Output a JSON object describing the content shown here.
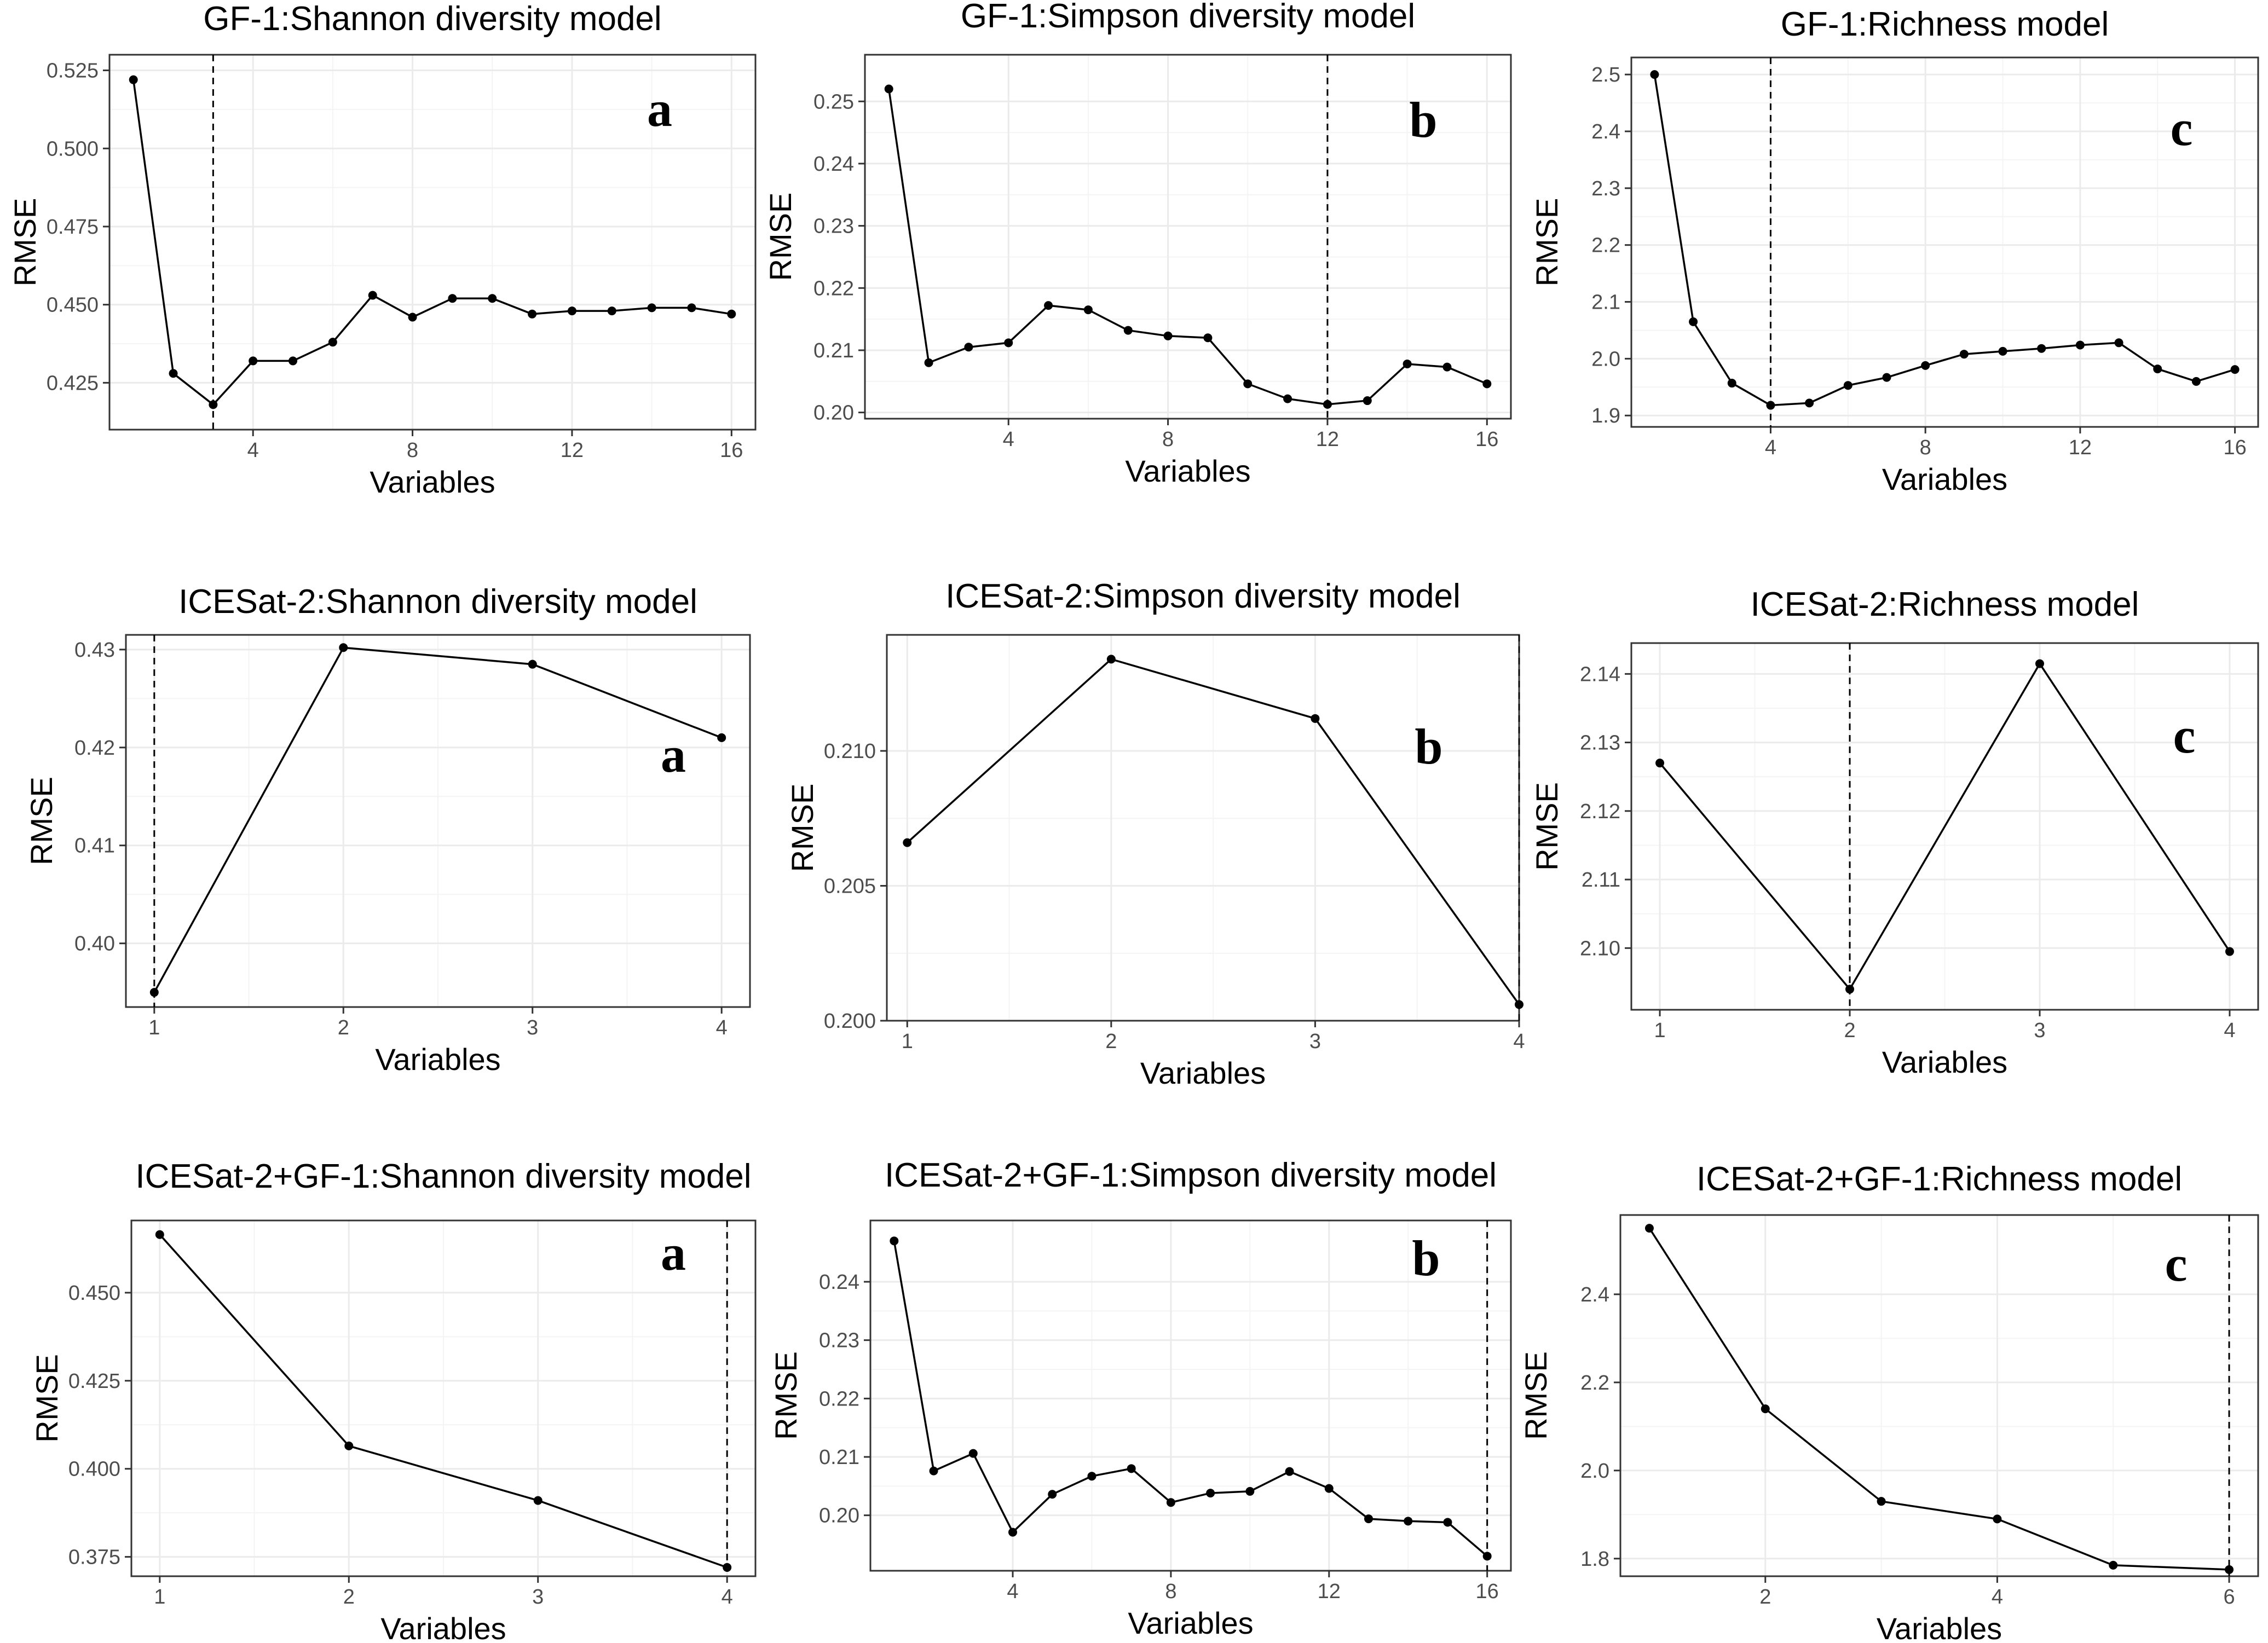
{
  "figure": {
    "colors": {
      "line": "#000000",
      "grid": "#ebebeb",
      "frame": "#333333",
      "optimum_line": "#000000"
    }
  },
  "chart_data": [
    {
      "type": "line",
      "title": "GF-1:Shannon diversity model",
      "xlabel": "Variables",
      "ylabel": "RMSE",
      "panel_label": "a",
      "xlim": [
        0.4,
        16.6
      ],
      "ylim": [
        0.41,
        0.53
      ],
      "xticks": [
        4,
        8,
        12,
        16
      ],
      "yticks": [
        0.425,
        0.45,
        0.475,
        0.5,
        0.525
      ],
      "ytick_labels": [
        "0.425",
        "0.450",
        "0.475",
        "0.500",
        "0.525"
      ],
      "optimal_variables": 3,
      "x": [
        1,
        2,
        3,
        4,
        5,
        6,
        7,
        8,
        9,
        10,
        11,
        12,
        13,
        14,
        15,
        16
      ],
      "values": [
        0.522,
        0.428,
        0.418,
        0.432,
        0.432,
        0.438,
        0.453,
        0.446,
        0.452,
        0.452,
        0.447,
        0.448,
        0.448,
        0.449,
        0.449,
        0.447
      ]
    },
    {
      "type": "line",
      "title": "GF-1:Simpson diversity model",
      "xlabel": "Variables",
      "ylabel": "RMSE",
      "panel_label": "b",
      "xlim": [
        0.4,
        16.6
      ],
      "ylim": [
        0.199,
        0.2575
      ],
      "xticks": [
        4,
        8,
        12,
        16
      ],
      "yticks": [
        0.2,
        0.21,
        0.22,
        0.23,
        0.24,
        0.25
      ],
      "ytick_labels": [
        "0.20",
        "0.21",
        "0.22",
        "0.23",
        "0.24",
        "0.25"
      ],
      "optimal_variables": 12,
      "x": [
        1,
        2,
        3,
        4,
        5,
        6,
        7,
        8,
        9,
        10,
        11,
        12,
        13,
        14,
        15,
        16
      ],
      "values": [
        0.252,
        0.208,
        0.2105,
        0.2112,
        0.2172,
        0.2165,
        0.2132,
        0.2123,
        0.212,
        0.2046,
        0.2022,
        0.2013,
        0.2019,
        0.2078,
        0.2073,
        0.2046
      ]
    },
    {
      "type": "line",
      "title": "GF-1:Richness model",
      "xlabel": "Variables",
      "ylabel": "RMSE",
      "panel_label": "c",
      "xlim": [
        0.4,
        16.6
      ],
      "ylim": [
        1.88,
        2.53
      ],
      "xticks": [
        4,
        8,
        12,
        16
      ],
      "yticks": [
        1.9,
        2.0,
        2.1,
        2.2,
        2.3,
        2.4,
        2.5
      ],
      "ytick_labels": [
        "1.9",
        "2.0",
        "2.1",
        "2.2",
        "2.3",
        "2.4",
        "2.5"
      ],
      "optimal_variables": 4,
      "x": [
        1,
        2,
        3,
        4,
        5,
        6,
        7,
        8,
        9,
        10,
        11,
        12,
        13,
        14,
        15,
        16
      ],
      "values": [
        2.5,
        2.065,
        1.957,
        1.918,
        1.922,
        1.953,
        1.967,
        1.988,
        2.008,
        2.013,
        2.018,
        2.024,
        2.028,
        1.982,
        1.96,
        1.981
      ]
    },
    {
      "type": "line",
      "title": "ICESat-2:Shannon diversity model",
      "xlabel": "Variables",
      "ylabel": "RMSE",
      "panel_label": "a",
      "xlim": [
        0.85,
        4.15
      ],
      "ylim": [
        0.3935,
        0.4315
      ],
      "xticks": [
        1,
        2,
        3,
        4
      ],
      "yticks": [
        0.4,
        0.41,
        0.42,
        0.43
      ],
      "ytick_labels": [
        "0.40",
        "0.41",
        "0.42",
        "0.43"
      ],
      "optimal_variables": 1,
      "x": [
        1,
        2,
        3,
        4
      ],
      "values": [
        0.395,
        0.4302,
        0.4285,
        0.421
      ]
    },
    {
      "type": "line",
      "title": "ICESat-2:Simpson diversity model",
      "xlabel": "Variables",
      "ylabel": "RMSE",
      "panel_label": "b",
      "xlim": [
        0.9,
        4.0
      ],
      "ylim": [
        0.2,
        0.2143
      ],
      "xticks": [
        1,
        2,
        3,
        4
      ],
      "yticks": [
        0.2,
        0.205,
        0.21
      ],
      "ytick_labels": [
        "0.200",
        "0.205",
        "0.210"
      ],
      "optimal_variables": 4,
      "x": [
        1,
        2,
        3,
        4
      ],
      "values": [
        0.2066,
        0.2134,
        0.2112,
        0.2006
      ]
    },
    {
      "type": "line",
      "title": "ICESat-2:Richness model",
      "xlabel": "Variables",
      "ylabel": "RMSE",
      "panel_label": "c",
      "xlim": [
        0.85,
        4.15
      ],
      "ylim": [
        2.091,
        2.1445
      ],
      "xticks": [
        1,
        2,
        3,
        4
      ],
      "yticks": [
        2.1,
        2.11,
        2.12,
        2.13,
        2.14
      ],
      "ytick_labels": [
        "2.10",
        "2.11",
        "2.12",
        "2.13",
        "2.14"
      ],
      "optimal_variables": 2,
      "x": [
        1,
        2,
        3,
        4
      ],
      "values": [
        2.127,
        2.094,
        2.1415,
        2.0995
      ]
    },
    {
      "type": "line",
      "title": "ICESat-2+GF-1:Shannon diversity model",
      "xlabel": "Variables",
      "ylabel": "RMSE",
      "panel_label": "a",
      "xlim": [
        0.85,
        4.15
      ],
      "ylim": [
        0.3695,
        0.4705
      ],
      "xticks": [
        1,
        2,
        3,
        4
      ],
      "yticks": [
        0.375,
        0.4,
        0.425,
        0.45
      ],
      "ytick_labels": [
        "0.375",
        "0.400",
        "0.425",
        "0.450"
      ],
      "optimal_variables": 4,
      "x": [
        1,
        2,
        3,
        4
      ],
      "values": [
        0.4665,
        0.4065,
        0.391,
        0.372
      ]
    },
    {
      "type": "line",
      "title": "ICESat-2+GF-1:Simpson diversity model",
      "xlabel": "Variables",
      "ylabel": "RMSE",
      "panel_label": "b",
      "xlim": [
        0.4,
        16.6
      ],
      "ylim": [
        0.1905,
        0.2505
      ],
      "xticks": [
        4,
        8,
        12,
        16
      ],
      "yticks": [
        0.2,
        0.21,
        0.22,
        0.23,
        0.24
      ],
      "ytick_labels": [
        "0.20",
        "0.21",
        "0.22",
        "0.23",
        "0.24"
      ],
      "optimal_variables": 16,
      "x": [
        1,
        2,
        3,
        4,
        5,
        6,
        7,
        8,
        9,
        10,
        11,
        12,
        13,
        14,
        15,
        16
      ],
      "values": [
        0.247,
        0.2076,
        0.2106,
        0.1971,
        0.2036,
        0.2067,
        0.208,
        0.2022,
        0.2038,
        0.2041,
        0.2075,
        0.2046,
        0.1994,
        0.199,
        0.1988,
        0.193
      ]
    },
    {
      "type": "line",
      "title": "ICESat-2+GF-1:Richness model",
      "xlabel": "Variables",
      "ylabel": "RMSE",
      "panel_label": "c",
      "xlim": [
        0.75,
        6.25
      ],
      "ylim": [
        1.76,
        2.58
      ],
      "xticks": [
        2,
        4,
        6
      ],
      "yticks": [
        1.8,
        2.0,
        2.2,
        2.4
      ],
      "ytick_labels": [
        "1.8",
        "2.0",
        "2.2",
        "2.4"
      ],
      "optimal_variables": 6,
      "x": [
        1,
        2,
        3,
        4,
        5,
        6
      ],
      "values": [
        2.55,
        2.14,
        1.93,
        1.89,
        1.785,
        1.775
      ]
    }
  ]
}
